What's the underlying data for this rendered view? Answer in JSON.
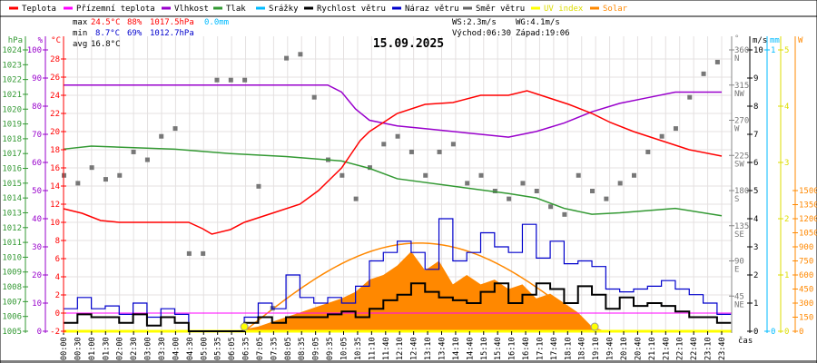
{
  "legend": [
    {
      "label": "Teplota",
      "color": "#ff0000"
    },
    {
      "label": "Přízemní teplota",
      "color": "#ff00ff"
    },
    {
      "label": "Vlhkost",
      "color": "#9900cc"
    },
    {
      "label": "Tlak",
      "color": "#339933"
    },
    {
      "label": "Srážky",
      "color": "#00bbff"
    },
    {
      "label": "Rychlost větru",
      "color": "#000000"
    },
    {
      "label": "Náraz větru",
      "color": "#0000cc"
    },
    {
      "label": "Směr větru",
      "color": "#666666"
    },
    {
      "label": "UV index",
      "color": "#ffff00"
    },
    {
      "label": "Solar",
      "color": "#ff8800"
    }
  ],
  "stats": {
    "max_label": "max",
    "max_temp": "24.5°C",
    "max_hum": "88%",
    "max_press": "1017.5hPa",
    "rain": "0.0mm",
    "min_label": "min",
    "min_temp": "8.7°C",
    "min_hum": "69%",
    "min_press": "1012.7hPa",
    "avg_label": "avg",
    "avg_temp": "16.8°C",
    "ws": "WS:2.3m/s",
    "wg": "WG:4.1m/s",
    "sunrise": "Východ:06:30",
    "sunset": "Západ:19:06"
  },
  "chart_data": {
    "type": "line",
    "title": "15.09.2025",
    "xlabel": "čas",
    "x_ticks": [
      "00:00",
      "00:30",
      "01:00",
      "01:30",
      "02:00",
      "02:30",
      "03:00",
      "03:30",
      "04:00",
      "04:30",
      "05:00",
      "05:35",
      "06:05",
      "06:35",
      "07:05",
      "07:35",
      "08:05",
      "08:35",
      "09:05",
      "09:35",
      "10:05",
      "10:35",
      "11:10",
      "11:40",
      "12:10",
      "12:40",
      "13:10",
      "13:40",
      "14:10",
      "14:40",
      "15:10",
      "15:40",
      "16:10",
      "16:40",
      "17:10",
      "17:40",
      "18:10",
      "18:40",
      "19:10",
      "19:40",
      "20:10",
      "20:40",
      "21:10",
      "21:40",
      "22:10",
      "22:40",
      "23:10",
      "23:40"
    ],
    "axes": {
      "pressure": {
        "unit": "hPa",
        "range": [
          1005,
          1024
        ],
        "ticks": [
          1005,
          1006,
          1007,
          1008,
          1009,
          1010,
          1011,
          1012,
          1013,
          1014,
          1015,
          1016,
          1017,
          1018,
          1019,
          1020,
          1021,
          1022,
          1023,
          1024
        ]
      },
      "humidity": {
        "unit": "%",
        "range": [
          0,
          100
        ],
        "ticks": [
          0,
          10,
          20,
          30,
          40,
          50,
          60,
          70,
          80,
          90,
          100
        ]
      },
      "temperature": {
        "unit": "°C",
        "range": [
          -2,
          29
        ],
        "ticks": [
          -2,
          0,
          2,
          4,
          6,
          8,
          10,
          12,
          14,
          16,
          18,
          20,
          22,
          24,
          26,
          28
        ]
      },
      "direction": {
        "unit": "°",
        "range": [
          0,
          360
        ],
        "ticks": [
          {
            "v": 45,
            "l": "45",
            "d": "NE"
          },
          {
            "v": 90,
            "l": "90",
            "d": "E"
          },
          {
            "v": 135,
            "l": "135",
            "d": "SE"
          },
          {
            "v": 180,
            "l": "180",
            "d": "S"
          },
          {
            "v": 225,
            "l": "225",
            "d": "SW"
          },
          {
            "v": 270,
            "l": "270",
            "d": "W"
          },
          {
            "v": 315,
            "l": "315",
            "d": "NW"
          },
          {
            "v": 360,
            "l": "360",
            "d": "N"
          }
        ]
      },
      "wind": {
        "unit": "m/s",
        "range": [
          0,
          10
        ],
        "ticks": [
          0,
          1,
          2,
          3,
          4,
          5,
          6,
          7,
          8,
          9,
          10
        ]
      },
      "rain": {
        "unit": "mm",
        "range": [
          0,
          1
        ],
        "ticks": [
          0,
          1
        ]
      },
      "uv": {
        "unit": "",
        "range": [
          0,
          5
        ],
        "ticks": [
          0,
          1,
          2,
          3,
          4,
          5
        ]
      },
      "solar": {
        "unit": "W",
        "range": [
          0,
          3000
        ],
        "ticks": [
          0,
          150,
          300,
          450,
          600,
          750,
          900,
          1050,
          1200,
          1350,
          1500
        ]
      }
    },
    "series": {
      "temperature": {
        "t": [
          "00:00",
          "00:40",
          "01:20",
          "02:00",
          "04:30",
          "05:00",
          "05:20",
          "06:00",
          "06:30",
          "07:30",
          "08:30",
          "09:10",
          "09:40",
          "10:00",
          "10:20",
          "10:40",
          "11:00",
          "11:30",
          "12:00",
          "13:00",
          "14:00",
          "15:00",
          "16:00",
          "16:40",
          "17:10",
          "18:10",
          "19:00",
          "19:40",
          "20:30",
          "21:30",
          "22:30",
          "23:40"
        ],
        "v": [
          11.5,
          11,
          10.2,
          10,
          10,
          9.3,
          8.7,
          9.2,
          10,
          11,
          12,
          13.5,
          15,
          16,
          17.5,
          19,
          20,
          21,
          22,
          23,
          23.2,
          24,
          24,
          24.5,
          24,
          23,
          22,
          21,
          20,
          19,
          18,
          17.3
        ]
      },
      "ground_temperature": {
        "t": [
          "00:00",
          "23:40"
        ],
        "v": [
          0,
          0
        ]
      },
      "humidity": {
        "t": [
          "00:00",
          "09:30",
          "10:00",
          "10:30",
          "11:00",
          "12:00",
          "13:00",
          "14:00",
          "15:00",
          "16:00",
          "17:00",
          "18:00",
          "19:00",
          "20:00",
          "21:00",
          "22:00",
          "23:40"
        ],
        "v": [
          87.5,
          87.5,
          85,
          79,
          75,
          73,
          72,
          71,
          70,
          69,
          71,
          74,
          78,
          81,
          83,
          85,
          85
        ]
      },
      "pressure": {
        "t": [
          "00:00",
          "01:00",
          "04:00",
          "06:00",
          "08:00",
          "10:00",
          "11:00",
          "12:00",
          "14:00",
          "16:00",
          "17:00",
          "18:00",
          "19:00",
          "20:00",
          "22:00",
          "23:40"
        ],
        "v": [
          1017.3,
          1017.5,
          1017.3,
          1017,
          1016.8,
          1016.5,
          1016,
          1015.3,
          1014.8,
          1014.3,
          1014,
          1013.3,
          1012.9,
          1013,
          1013.3,
          1012.8
        ]
      },
      "wind_speed": [
        0.3,
        0.6,
        0.5,
        0.5,
        0.3,
        0.6,
        0.2,
        0.5,
        0.3,
        0,
        0,
        0,
        0,
        0.3,
        0.5,
        0.3,
        0.5,
        0.5,
        0.5,
        0.6,
        0.7,
        0.5,
        0.8,
        1.1,
        1.3,
        1.7,
        1.4,
        1.2,
        1.1,
        1.0,
        1.4,
        1.7,
        1.0,
        1.3,
        1.7,
        1.5,
        1.0,
        1.6,
        1.3,
        0.8,
        1.2,
        0.9,
        1.0,
        0.9,
        0.7,
        0.5,
        0.5,
        0.3
      ],
      "wind_gust": [
        0.8,
        1.2,
        0.8,
        0.9,
        0.6,
        1.0,
        0.5,
        0.8,
        0.6,
        0,
        0,
        0,
        0,
        0.5,
        1.0,
        0.8,
        2.0,
        1.2,
        1.0,
        1.2,
        1.0,
        1.6,
        2.5,
        2.8,
        3.2,
        2.8,
        2.2,
        4.0,
        2.5,
        2.8,
        3.5,
        3.0,
        2.8,
        3.8,
        2.6,
        3.2,
        2.4,
        2.5,
        2.3,
        1.5,
        1.4,
        1.5,
        1.6,
        1.8,
        1.5,
        1.3,
        1.0,
        0.6
      ],
      "wind_direction": [
        200,
        190,
        210,
        195,
        200,
        230,
        220,
        250,
        260,
        100,
        100,
        322,
        322,
        322,
        186,
        30,
        350,
        355,
        300,
        220,
        200,
        170,
        210,
        240,
        250,
        230,
        200,
        230,
        240,
        190,
        200,
        180,
        170,
        190,
        180,
        160,
        150,
        200,
        180,
        170,
        190,
        200,
        230,
        250,
        260,
        300,
        330,
        345
      ],
      "solar": [
        0,
        0,
        0,
        0,
        0,
        0,
        0,
        0,
        0,
        0,
        0,
        0,
        0,
        20,
        50,
        100,
        150,
        200,
        250,
        300,
        350,
        420,
        550,
        600,
        700,
        850,
        650,
        750,
        500,
        600,
        500,
        550,
        450,
        500,
        350,
        400,
        300,
        200,
        50,
        0,
        0,
        0,
        0,
        0,
        0,
        0,
        0,
        0
      ],
      "solar_theoretical": {
        "sunrise": "06:30",
        "sunset": "19:06",
        "peak": 940
      },
      "rain": 0,
      "uv": 0
    }
  }
}
